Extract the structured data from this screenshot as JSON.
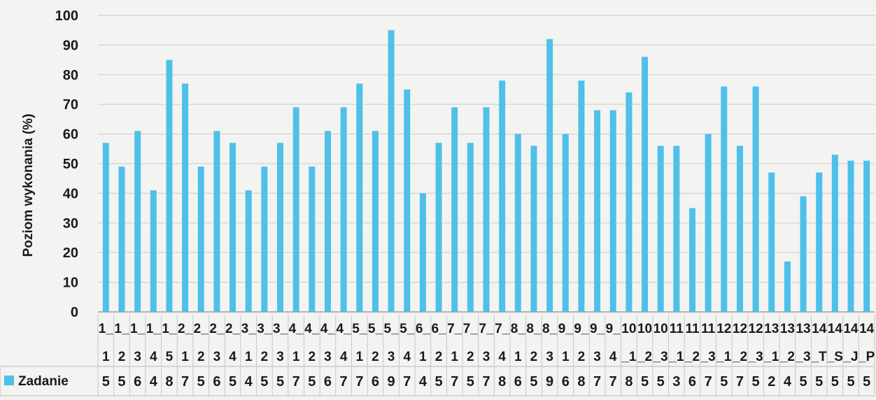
{
  "chart_data": {
    "type": "bar",
    "title": "",
    "xlabel": "",
    "ylabel": "Poziom wykonania (%)",
    "ylim": [
      0,
      100
    ],
    "yticks": [
      "0",
      "10",
      "20",
      "30",
      "40",
      "50",
      "60",
      "70",
      "80",
      "90",
      "100"
    ],
    "grid": true,
    "legend_position": "bottom-left",
    "categories": [
      "1_1",
      "1_2",
      "1_3",
      "1_4",
      "1_5",
      "2_1",
      "2_2",
      "2_3",
      "2_4",
      "3_1",
      "3_2",
      "3_3",
      "4_1",
      "4_2",
      "4_3",
      "4_4",
      "5_1",
      "5_2",
      "5_3",
      "5_4",
      "6_1",
      "6_2",
      "7_1",
      "7_2",
      "7_3",
      "7_4",
      "8_1",
      "8_2",
      "8_3",
      "9_1",
      "9_2",
      "9_3",
      "9_4",
      "10_1",
      "10_2",
      "10_3",
      "11_1",
      "11_2",
      "11_3",
      "12_1",
      "12_2",
      "12_3",
      "13_1",
      "13_2",
      "13_3",
      "14_T",
      "14_S",
      "14_J",
      "14_P"
    ],
    "x_label_line1": [
      "1_",
      "1_",
      "1_",
      "1_",
      "1_",
      "2_",
      "2_",
      "2_",
      "2_",
      "3_",
      "3_",
      "3_",
      "4_",
      "4_",
      "4_",
      "4_",
      "5_",
      "5_",
      "5_",
      "5_",
      "6_",
      "6_",
      "7_",
      "7_",
      "7_",
      "7_",
      "8_",
      "8_",
      "8_",
      "9_",
      "9_",
      "9_",
      "9_",
      "10",
      "10",
      "10",
      "11",
      "11",
      "11",
      "12",
      "12",
      "12",
      "13",
      "13",
      "13",
      "14",
      "14",
      "14",
      "14"
    ],
    "x_label_line2": [
      "1",
      "2",
      "3",
      "4",
      "5",
      "1",
      "2",
      "3",
      "4",
      "1",
      "2",
      "3",
      "1",
      "2",
      "3",
      "4",
      "1",
      "2",
      "3",
      "4",
      "1",
      "2",
      "1",
      "2",
      "3",
      "4",
      "1",
      "2",
      "3",
      "1",
      "2",
      "3",
      "4",
      "_1",
      "_2",
      "_3",
      "_1",
      "_2",
      "_3",
      "_1",
      "_2",
      "_3",
      "_1",
      "_2",
      "_3",
      "_T",
      "_S",
      "_J",
      "_P"
    ],
    "table_row": [
      "5",
      "5",
      "6",
      "4",
      "8",
      "7",
      "5",
      "6",
      "5",
      "4",
      "5",
      "5",
      "7",
      "5",
      "6",
      "7",
      "7",
      "6",
      "9",
      "7",
      "4",
      "5",
      "7",
      "5",
      "7",
      "8",
      "6",
      "5",
      "9",
      "6",
      "8",
      "7",
      "7",
      "8",
      "5",
      "5",
      "3",
      "6",
      "7",
      "5",
      "7",
      "5",
      "2",
      "4",
      "5",
      "5",
      "5",
      "5",
      "5"
    ],
    "series": [
      {
        "name": "Zadanie",
        "color": "#4ec0ea",
        "values": [
          57,
          49,
          61,
          41,
          85,
          77,
          49,
          61,
          57,
          41,
          49,
          57,
          69,
          49,
          61,
          69,
          77,
          61,
          95,
          75,
          40,
          57,
          69,
          57,
          69,
          78,
          60,
          56,
          92,
          60,
          78,
          68,
          68,
          74,
          86,
          56,
          56,
          35,
          60,
          76,
          56,
          76,
          47,
          17,
          39,
          47,
          53,
          51,
          51
        ]
      }
    ]
  }
}
